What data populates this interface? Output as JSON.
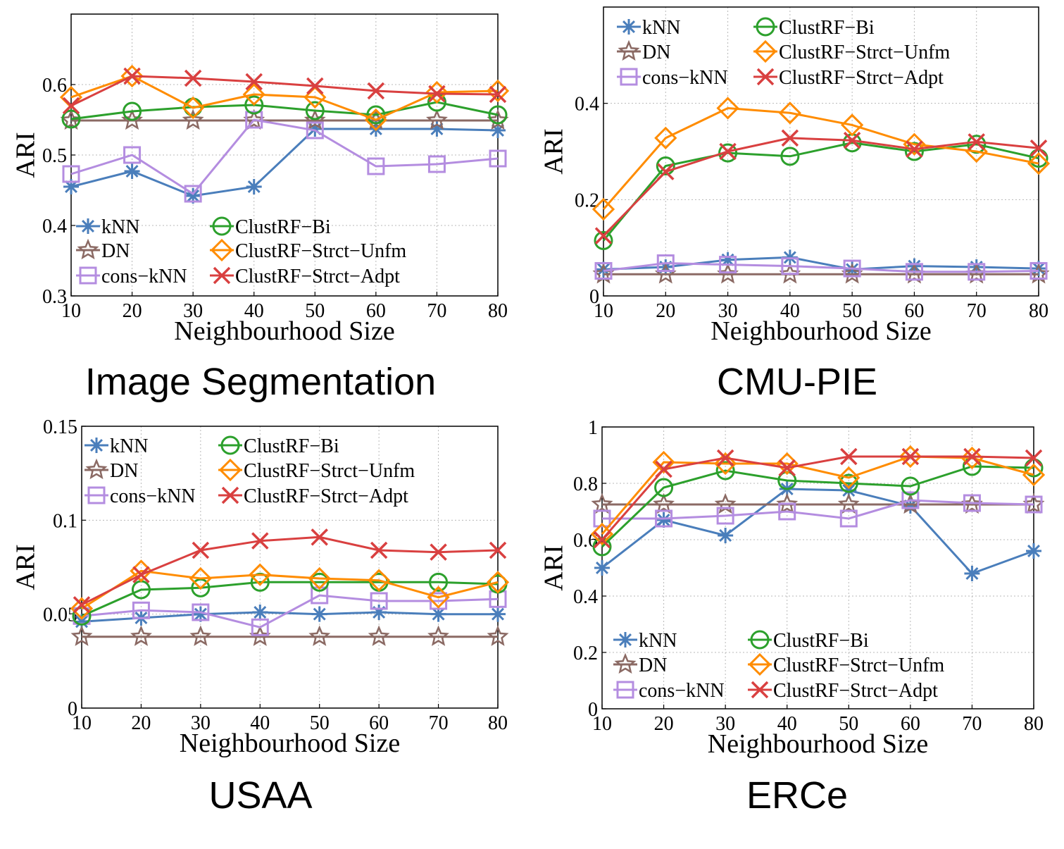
{
  "colors": {
    "kNN": "#4a7ebb",
    "DN": "#8b6a64",
    "cons-kNN": "#b48de0",
    "ClustRF-Bi": "#2ca02c",
    "ClustRF-Strct-Unfm": "#ff8c00",
    "ClustRF-Strct-Adpt": "#d94040"
  },
  "chart_data": [
    {
      "type": "line",
      "caption": "Image Segmentation",
      "xlabel": "Neighbourhood Size",
      "ylabel": "ARI",
      "x": [
        10,
        20,
        30,
        40,
        50,
        60,
        70,
        80
      ],
      "xticks": [
        "10",
        "20",
        "30",
        "40",
        "50",
        "60",
        "70",
        "80"
      ],
      "yticks": [
        "0.3",
        "0.4",
        "0.5",
        "0.6"
      ],
      "ytick_values": [
        0.3,
        0.4,
        0.5,
        0.6
      ],
      "xlim": [
        10,
        80
      ],
      "ylim": [
        0.3,
        0.7
      ],
      "grid": true,
      "legend_position": "bottom",
      "series": [
        {
          "name": "kNN",
          "marker": "asterisk",
          "values": [
            0.455,
            0.477,
            0.442,
            0.455,
            0.537,
            0.537,
            0.537,
            0.535
          ]
        },
        {
          "name": "DN",
          "marker": "star",
          "values": [
            0.549,
            0.549,
            0.549,
            0.549,
            0.549,
            0.549,
            0.549,
            0.549
          ]
        },
        {
          "name": "cons-kNN",
          "marker": "square",
          "values": [
            0.473,
            0.5,
            0.445,
            0.55,
            0.535,
            0.484,
            0.487,
            0.495
          ]
        },
        {
          "name": "ClustRF-Bi",
          "marker": "circle",
          "values": [
            0.551,
            0.562,
            0.568,
            0.571,
            0.563,
            0.557,
            0.575,
            0.557
          ]
        },
        {
          "name": "ClustRF-Strct-Unfm",
          "marker": "diamond",
          "values": [
            0.582,
            0.612,
            0.567,
            0.586,
            0.582,
            0.55,
            0.589,
            0.591
          ]
        },
        {
          "name": "ClustRF-Strct-Adpt",
          "marker": "x",
          "values": [
            0.57,
            0.612,
            0.609,
            0.604,
            0.598,
            0.591,
            0.587,
            0.586
          ]
        }
      ]
    },
    {
      "type": "line",
      "caption": "CMU-PIE",
      "xlabel": "Neighbourhood Size",
      "ylabel": "ARI",
      "x": [
        10,
        20,
        30,
        40,
        50,
        60,
        70,
        80
      ],
      "xticks": [
        "10",
        "20",
        "30",
        "40",
        "50",
        "60",
        "70",
        "80"
      ],
      "yticks": [
        "0",
        "0.2",
        "0.4"
      ],
      "ytick_values": [
        0,
        0.2,
        0.4
      ],
      "xlim": [
        10,
        80
      ],
      "ylim": [
        0,
        0.6
      ],
      "grid": true,
      "legend_position": "top",
      "series": [
        {
          "name": "kNN",
          "marker": "asterisk",
          "values": [
            0.055,
            0.06,
            0.075,
            0.08,
            0.055,
            0.062,
            0.06,
            0.057
          ]
        },
        {
          "name": "DN",
          "marker": "star",
          "values": [
            0.045,
            0.045,
            0.045,
            0.045,
            0.045,
            0.045,
            0.045,
            0.045
          ]
        },
        {
          "name": "cons-kNN",
          "marker": "square",
          "values": [
            0.052,
            0.068,
            0.065,
            0.062,
            0.057,
            0.05,
            0.05,
            0.052
          ]
        },
        {
          "name": "ClustRF-Bi",
          "marker": "circle",
          "values": [
            0.115,
            0.27,
            0.297,
            0.29,
            0.318,
            0.3,
            0.315,
            0.286
          ]
        },
        {
          "name": "ClustRF-Strct-Unfm",
          "marker": "diamond",
          "values": [
            0.18,
            0.328,
            0.39,
            0.38,
            0.355,
            0.315,
            0.3,
            0.275
          ]
        },
        {
          "name": "ClustRF-Strct-Adpt",
          "marker": "x",
          "values": [
            0.125,
            0.258,
            0.3,
            0.328,
            0.323,
            0.305,
            0.32,
            0.307
          ]
        }
      ]
    },
    {
      "type": "line",
      "caption": "USAA",
      "xlabel": "Neighbourhood Size",
      "ylabel": "ARI",
      "x": [
        10,
        20,
        30,
        40,
        50,
        60,
        70,
        80
      ],
      "xticks": [
        "10",
        "20",
        "30",
        "40",
        "50",
        "60",
        "70",
        "80"
      ],
      "yticks": [
        "0",
        "0.05",
        "0.1",
        "0.15"
      ],
      "ytick_values": [
        0,
        0.05,
        0.1,
        0.15
      ],
      "xlim": [
        10,
        80
      ],
      "ylim": [
        0,
        0.15
      ],
      "grid": true,
      "legend_position": "top",
      "series": [
        {
          "name": "kNN",
          "marker": "asterisk",
          "values": [
            0.046,
            0.048,
            0.05,
            0.051,
            0.05,
            0.051,
            0.05,
            0.05
          ]
        },
        {
          "name": "DN",
          "marker": "star",
          "values": [
            0.038,
            0.038,
            0.038,
            0.038,
            0.038,
            0.038,
            0.038,
            0.038
          ]
        },
        {
          "name": "cons-kNN",
          "marker": "square",
          "values": [
            0.049,
            0.052,
            0.051,
            0.043,
            0.06,
            0.057,
            0.057,
            0.058
          ]
        },
        {
          "name": "ClustRF-Bi",
          "marker": "circle",
          "values": [
            0.049,
            0.063,
            0.064,
            0.067,
            0.067,
            0.067,
            0.067,
            0.066
          ]
        },
        {
          "name": "ClustRF-Strct-Unfm",
          "marker": "diamond",
          "values": [
            0.053,
            0.073,
            0.069,
            0.071,
            0.069,
            0.068,
            0.059,
            0.067
          ]
        },
        {
          "name": "ClustRF-Strct-Adpt",
          "marker": "x",
          "values": [
            0.055,
            0.071,
            0.084,
            0.089,
            0.091,
            0.084,
            0.083,
            0.084
          ]
        }
      ]
    },
    {
      "type": "line",
      "caption": "ERCe",
      "xlabel": "Neighbourhood Size",
      "ylabel": "ARI",
      "x": [
        10,
        20,
        30,
        40,
        50,
        60,
        70,
        80
      ],
      "xticks": [
        "10",
        "20",
        "30",
        "40",
        "50",
        "60",
        "70",
        "80"
      ],
      "yticks": [
        "0",
        "0.2",
        "0.4",
        "0.6",
        "0.8",
        "1"
      ],
      "ytick_values": [
        0,
        0.2,
        0.4,
        0.6,
        0.8,
        1
      ],
      "xlim": [
        10,
        80
      ],
      "ylim": [
        0,
        1
      ],
      "grid": true,
      "legend_position": "bottom",
      "series": [
        {
          "name": "kNN",
          "marker": "asterisk",
          "values": [
            0.5,
            0.67,
            0.615,
            0.78,
            0.775,
            0.72,
            0.48,
            0.56
          ]
        },
        {
          "name": "DN",
          "marker": "star",
          "values": [
            0.725,
            0.725,
            0.725,
            0.725,
            0.725,
            0.725,
            0.725,
            0.725
          ]
        },
        {
          "name": "cons-kNN",
          "marker": "square",
          "values": [
            0.675,
            0.675,
            0.685,
            0.7,
            0.675,
            0.74,
            0.73,
            0.725
          ]
        },
        {
          "name": "ClustRF-Bi",
          "marker": "circle",
          "values": [
            0.575,
            0.785,
            0.845,
            0.81,
            0.8,
            0.79,
            0.86,
            0.855
          ]
        },
        {
          "name": "ClustRF-Strct-Unfm",
          "marker": "diamond",
          "values": [
            0.62,
            0.875,
            0.87,
            0.87,
            0.82,
            0.895,
            0.89,
            0.83
          ]
        },
        {
          "name": "ClustRF-Strct-Adpt",
          "marker": "x",
          "values": [
            0.6,
            0.85,
            0.89,
            0.855,
            0.895,
            0.895,
            0.895,
            0.89
          ]
        }
      ]
    }
  ]
}
